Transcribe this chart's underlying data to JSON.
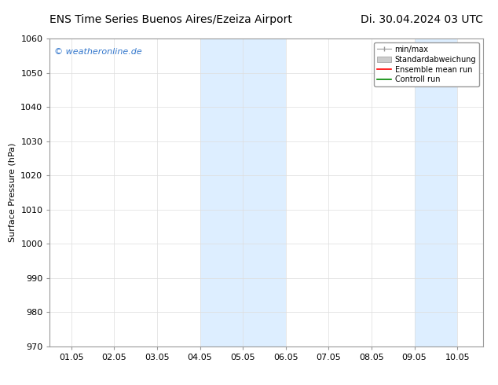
{
  "title_left": "ENS Time Series Buenos Aires/Ezeiza Airport",
  "title_right": "Di. 30.04.2024 03 UTC",
  "ylabel": "Surface Pressure (hPa)",
  "ylim": [
    970,
    1060
  ],
  "yticks": [
    970,
    980,
    990,
    1000,
    1010,
    1020,
    1030,
    1040,
    1050,
    1060
  ],
  "xtick_labels": [
    "01.05",
    "02.05",
    "03.05",
    "04.05",
    "05.05",
    "06.05",
    "07.05",
    "08.05",
    "09.05",
    "10.05"
  ],
  "xtick_positions": [
    1,
    2,
    3,
    4,
    5,
    6,
    7,
    8,
    9,
    10
  ],
  "xlim": [
    0.5,
    10.6
  ],
  "shaded_bands": [
    {
      "x_start": 4.0,
      "x_end": 6.0,
      "color": "#ddeeff"
    },
    {
      "x_start": 9.0,
      "x_end": 10.0,
      "color": "#ddeeff"
    }
  ],
  "watermark_text": "© weatheronline.de",
  "watermark_color": "#3377cc",
  "background_color": "#ffffff",
  "grid_color": "#dddddd",
  "spine_color": "#999999",
  "title_fontsize": 10,
  "ylabel_fontsize": 8,
  "tick_fontsize": 8,
  "watermark_fontsize": 8,
  "legend_fontsize": 7,
  "legend_items": [
    {
      "label": "min/max",
      "type": "errorbar",
      "color": "#999999"
    },
    {
      "label": "Standardabweichung",
      "type": "patch",
      "color": "#cccccc"
    },
    {
      "label": "Ensemble mean run",
      "type": "line",
      "color": "#ff0000"
    },
    {
      "label": "Controll run",
      "type": "line",
      "color": "#008800"
    }
  ]
}
